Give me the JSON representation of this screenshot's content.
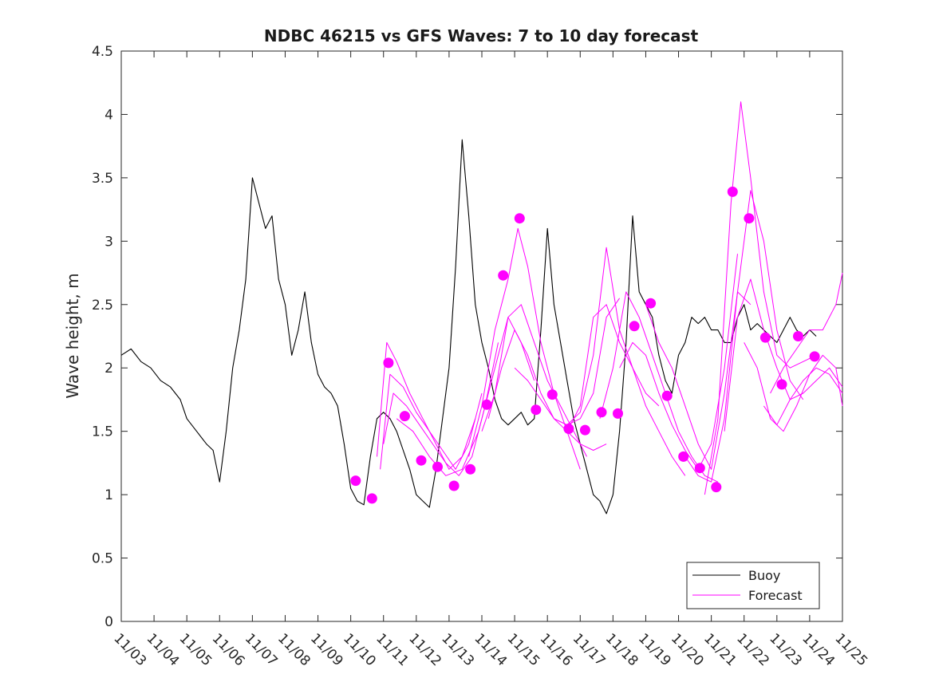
{
  "chart_data": {
    "type": "line",
    "title": "NDBC 46215 vs GFS Waves: 7 to 10 day forecast",
    "xlabel": "",
    "ylabel": "Wave height, m",
    "xlim": [
      3,
      25
    ],
    "ylim": [
      0,
      4.5
    ],
    "x_tick_values": [
      3,
      4,
      5,
      6,
      7,
      8,
      9,
      10,
      11,
      12,
      13,
      14,
      15,
      16,
      17,
      18,
      19,
      20,
      21,
      22,
      23,
      24,
      25
    ],
    "x_tick_labels": [
      "11/03",
      "11/04",
      "11/05",
      "11/06",
      "11/07",
      "11/08",
      "11/09",
      "11/10",
      "11/11",
      "11/12",
      "11/13",
      "11/14",
      "11/15",
      "11/16",
      "11/17",
      "11/18",
      "11/19",
      "11/20",
      "11/21",
      "11/22",
      "11/23",
      "11/24",
      "11/25"
    ],
    "y_tick_values": [
      0,
      0.5,
      1,
      1.5,
      2,
      2.5,
      3,
      3.5,
      4,
      4.5
    ],
    "y_tick_labels": [
      "0",
      "0.5",
      "1",
      "1.5",
      "2",
      "2.5",
      "3",
      "3.5",
      "4",
      "4.5"
    ],
    "colors": {
      "buoy": "#000000",
      "forecast": "#ff00ff",
      "axes": "#262626"
    },
    "legend": {
      "position": "bottom-right",
      "entries": [
        "Buoy",
        "Forecast"
      ]
    },
    "buoy": {
      "name": "Buoy",
      "x": [
        3.0,
        3.3,
        3.6,
        3.9,
        4.2,
        4.5,
        4.8,
        5.0,
        5.3,
        5.6,
        5.8,
        6.0,
        6.2,
        6.4,
        6.6,
        6.8,
        7.0,
        7.2,
        7.4,
        7.6,
        7.8,
        8.0,
        8.2,
        8.4,
        8.6,
        8.8,
        9.0,
        9.2,
        9.4,
        9.6,
        9.8,
        10.0,
        10.2,
        10.4,
        10.6,
        10.8,
        11.0,
        11.2,
        11.4,
        11.6,
        11.8,
        12.0,
        12.2,
        12.4,
        12.6,
        12.8,
        13.0,
        13.2,
        13.4,
        13.6,
        13.8,
        14.0,
        14.2,
        14.4,
        14.6,
        14.8,
        15.0,
        15.2,
        15.4,
        15.6,
        15.8,
        16.0,
        16.2,
        16.4,
        16.6,
        16.8,
        17.0,
        17.2,
        17.4,
        17.6,
        17.8,
        18.0,
        18.2,
        18.4,
        18.6,
        18.8,
        19.0,
        19.2,
        19.4,
        19.6,
        19.8,
        20.0,
        20.2,
        20.4,
        20.6,
        20.8,
        21.0,
        21.2,
        21.4,
        21.6,
        21.8,
        22.0,
        22.2,
        22.4,
        22.6,
        22.8,
        23.0,
        23.2,
        23.4,
        23.6,
        23.8,
        24.0,
        24.2
      ],
      "values": [
        2.1,
        2.15,
        2.05,
        2.0,
        1.9,
        1.85,
        1.75,
        1.6,
        1.5,
        1.4,
        1.35,
        1.1,
        1.5,
        2.0,
        2.3,
        2.7,
        3.5,
        3.3,
        3.1,
        3.2,
        2.7,
        2.5,
        2.1,
        2.3,
        2.6,
        2.2,
        1.95,
        1.85,
        1.8,
        1.7,
        1.4,
        1.05,
        0.95,
        0.92,
        1.3,
        1.6,
        1.65,
        1.6,
        1.5,
        1.35,
        1.2,
        1.0,
        0.95,
        0.9,
        1.2,
        1.6,
        2.0,
        2.8,
        3.8,
        3.2,
        2.5,
        2.2,
        2.0,
        1.75,
        1.6,
        1.55,
        1.6,
        1.65,
        1.55,
        1.6,
        2.3,
        3.1,
        2.5,
        2.2,
        1.9,
        1.6,
        1.4,
        1.2,
        1.0,
        0.95,
        0.85,
        1.0,
        1.5,
        2.2,
        3.2,
        2.6,
        2.5,
        2.4,
        2.1,
        1.9,
        1.8,
        2.1,
        2.2,
        2.4,
        2.35,
        2.4,
        2.3,
        2.3,
        2.2,
        2.2,
        2.4,
        2.5,
        2.3,
        2.35,
        2.3,
        2.25,
        2.2,
        2.3,
        2.4,
        2.3,
        2.25,
        2.3,
        2.25
      ]
    },
    "forecast_runs": [
      {
        "name": "Forecast",
        "x": [
          10.8,
          11.1,
          11.4,
          11.8,
          12.2,
          12.6,
          13.0,
          13.4,
          13.8
        ],
        "values": [
          1.3,
          2.2,
          2.05,
          1.8,
          1.6,
          1.4,
          1.2,
          1.3,
          1.6
        ]
      },
      {
        "name": "Forecast",
        "x": [
          10.9,
          11.2,
          11.6,
          12.0,
          12.4,
          12.8,
          13.2,
          13.6,
          14.0
        ],
        "values": [
          1.2,
          1.95,
          1.85,
          1.65,
          1.5,
          1.35,
          1.2,
          1.4,
          1.8
        ]
      },
      {
        "name": "Forecast",
        "x": [
          11.0,
          11.3,
          11.7,
          12.1,
          12.5,
          12.9,
          13.3,
          13.7,
          14.1,
          14.5
        ],
        "values": [
          1.4,
          1.8,
          1.7,
          1.55,
          1.4,
          1.25,
          1.15,
          1.3,
          1.7,
          2.2
        ]
      },
      {
        "name": "Forecast",
        "x": [
          11.4,
          11.9,
          12.4,
          12.9,
          13.4,
          13.9,
          14.4,
          14.8,
          15.2,
          15.6
        ],
        "values": [
          1.6,
          1.5,
          1.3,
          1.15,
          1.2,
          1.5,
          2.0,
          2.4,
          2.2,
          1.9
        ]
      },
      {
        "name": "Forecast",
        "x": [
          13.6,
          14.0,
          14.4,
          14.8,
          15.1,
          15.4,
          15.8,
          16.2,
          16.6,
          17.0
        ],
        "values": [
          1.3,
          1.7,
          2.3,
          2.7,
          3.1,
          2.8,
          2.2,
          1.8,
          1.5,
          1.2
        ]
      },
      {
        "name": "Forecast",
        "x": [
          14.0,
          14.4,
          14.8,
          15.2,
          15.6,
          16.0,
          16.4,
          16.8,
          17.2
        ],
        "values": [
          1.5,
          1.8,
          2.4,
          2.5,
          2.2,
          1.9,
          1.7,
          1.5,
          1.3
        ]
      },
      {
        "name": "Forecast",
        "x": [
          14.2,
          14.6,
          15.0,
          15.4,
          15.8,
          16.2,
          16.6,
          17.0,
          17.4,
          17.8
        ],
        "values": [
          1.6,
          2.0,
          2.3,
          2.1,
          1.8,
          1.6,
          1.5,
          1.4,
          1.35,
          1.4
        ]
      },
      {
        "name": "Forecast",
        "x": [
          15.0,
          15.4,
          15.8,
          16.2,
          16.6,
          17.0,
          17.4,
          17.8,
          18.2
        ],
        "values": [
          2.0,
          1.9,
          1.75,
          1.6,
          1.55,
          1.6,
          1.8,
          2.4,
          2.55
        ]
      },
      {
        "name": "Forecast",
        "x": [
          16.2,
          16.6,
          17.0,
          17.4,
          17.8,
          18.2,
          18.6,
          19.0,
          19.4
        ],
        "values": [
          1.6,
          1.55,
          1.65,
          2.1,
          2.95,
          2.3,
          2.0,
          1.8,
          1.7
        ]
      },
      {
        "name": "Forecast",
        "x": [
          16.6,
          17.0,
          17.4,
          17.8,
          18.2,
          18.6,
          19.0,
          19.4,
          19.8,
          20.2
        ],
        "values": [
          1.5,
          1.7,
          2.4,
          2.5,
          2.2,
          2.0,
          1.7,
          1.5,
          1.3,
          1.15
        ]
      },
      {
        "name": "Forecast",
        "x": [
          17.6,
          18.0,
          18.4,
          18.8,
          19.2,
          19.6,
          20.0,
          20.4,
          20.8,
          21.2
        ],
        "values": [
          1.6,
          2.0,
          2.6,
          2.4,
          2.1,
          1.8,
          1.5,
          1.3,
          1.15,
          1.1
        ]
      },
      {
        "name": "Forecast",
        "x": [
          18.2,
          18.6,
          19.0,
          19.4,
          19.8,
          20.2,
          20.6,
          21.0,
          21.4,
          21.8
        ],
        "values": [
          2.0,
          2.2,
          2.1,
          1.8,
          1.55,
          1.35,
          1.2,
          1.4,
          2.0,
          2.9
        ]
      },
      {
        "name": "Forecast",
        "x": [
          19.0,
          19.4,
          19.8,
          20.2,
          20.6,
          21.0,
          21.4,
          21.8,
          22.2
        ],
        "values": [
          2.5,
          2.2,
          2.0,
          1.7,
          1.4,
          1.2,
          1.8,
          2.6,
          2.5
        ]
      },
      {
        "name": "Forecast",
        "x": [
          20.2,
          20.6,
          21.0,
          21.4,
          21.8,
          22.2,
          22.6,
          23.0,
          23.4,
          23.8
        ],
        "values": [
          1.3,
          1.15,
          1.1,
          1.6,
          2.6,
          3.4,
          3.0,
          2.3,
          1.9,
          1.75
        ]
      },
      {
        "name": "Forecast",
        "x": [
          20.8,
          21.2,
          21.6,
          21.9,
          22.2,
          22.6,
          23.0,
          23.4,
          23.8,
          24.2
        ],
        "values": [
          1.0,
          1.6,
          3.3,
          4.1,
          3.5,
          2.6,
          2.1,
          2.0,
          2.05,
          2.1
        ]
      },
      {
        "name": "Forecast",
        "x": [
          21.4,
          21.8,
          22.2,
          22.6,
          23.0,
          23.4,
          23.8,
          24.2,
          24.6,
          25.0
        ],
        "values": [
          1.5,
          2.4,
          2.7,
          2.3,
          2.0,
          1.75,
          1.8,
          1.9,
          2.0,
          1.85
        ]
      },
      {
        "name": "Forecast",
        "x": [
          22.0,
          22.4,
          22.8,
          23.2,
          23.6,
          24.0,
          24.4,
          24.8,
          25.0
        ],
        "values": [
          2.2,
          2.0,
          1.6,
          1.5,
          1.7,
          1.95,
          2.1,
          2.0,
          1.7
        ]
      },
      {
        "name": "Forecast",
        "x": [
          22.8,
          23.2,
          23.6,
          24.0,
          24.4,
          24.8,
          25.0
        ],
        "values": [
          1.8,
          2.0,
          2.15,
          2.3,
          2.3,
          2.5,
          2.75
        ]
      },
      {
        "name": "Forecast",
        "x": [
          22.6,
          23.0,
          23.4,
          23.8,
          24.2,
          24.6,
          25.0
        ],
        "values": [
          1.7,
          1.55,
          1.75,
          1.9,
          2.0,
          1.95,
          1.8
        ]
      }
    ],
    "forecast_markers": {
      "x": [
        10.15,
        10.65,
        11.15,
        11.65,
        12.15,
        12.65,
        13.15,
        13.65,
        14.15,
        14.65,
        15.15,
        15.65,
        16.15,
        16.65,
        17.15,
        17.65,
        18.15,
        18.65,
        19.15,
        19.65,
        20.15,
        20.65,
        21.15,
        21.65,
        22.15,
        22.65,
        23.15,
        23.65,
        24.15
      ],
      "values": [
        1.11,
        0.97,
        2.04,
        1.62,
        1.27,
        1.22,
        1.07,
        1.2,
        1.71,
        2.73,
        3.18,
        1.67,
        1.79,
        1.52,
        1.51,
        1.65,
        1.64,
        2.33,
        2.51,
        1.78,
        1.3,
        1.21,
        1.06,
        3.39,
        3.18,
        2.24,
        1.87,
        2.25,
        2.09
      ]
    }
  }
}
